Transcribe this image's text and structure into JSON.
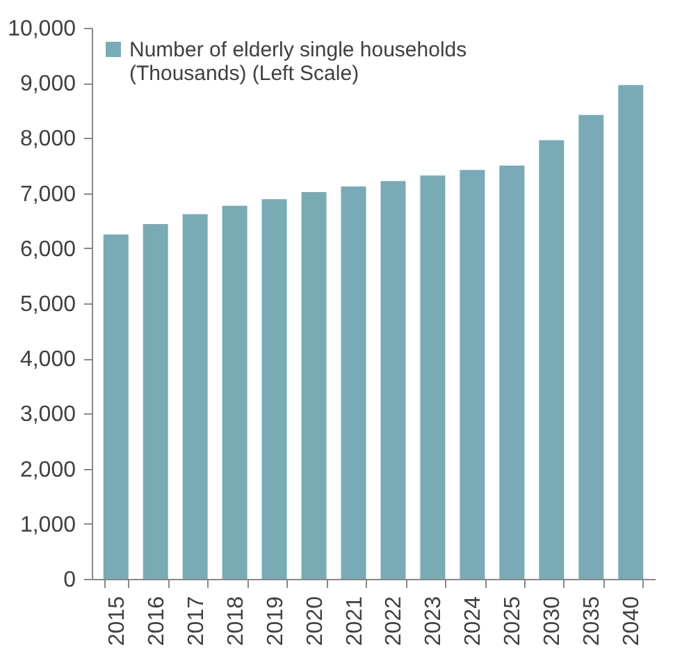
{
  "chart_data": {
    "type": "bar",
    "categories": [
      "2015",
      "2016",
      "2017",
      "2018",
      "2019",
      "2020",
      "2021",
      "2022",
      "2023",
      "2024",
      "2025",
      "2030",
      "2035",
      "2040"
    ],
    "series": [
      {
        "name": "Number of elderly single households (Thousands) (Left Scale)",
        "color": "#78abb5",
        "values": [
          6250,
          6440,
          6620,
          6770,
          6890,
          7020,
          7120,
          7220,
          7320,
          7420,
          7500,
          7960,
          8420,
          8960
        ]
      }
    ],
    "ylim": [
      0,
      10000
    ],
    "yticks": [
      0,
      {
        "value": 1000,
        "label": "1,000"
      },
      {
        "value": 2000,
        "label": "2,000"
      },
      {
        "value": 3000,
        "label": "3,000"
      },
      {
        "value": 4000,
        "label": "4,000"
      },
      {
        "value": 5000,
        "label": "5,000"
      },
      {
        "value": 6000,
        "label": "6,000"
      },
      {
        "value": 7000,
        "label": "7,000"
      },
      {
        "value": 8000,
        "label": "8,000"
      },
      {
        "value": 9000,
        "label": "9,000"
      },
      {
        "value": 10000,
        "label": "10,000"
      }
    ],
    "grid": false,
    "legend": "top left"
  }
}
